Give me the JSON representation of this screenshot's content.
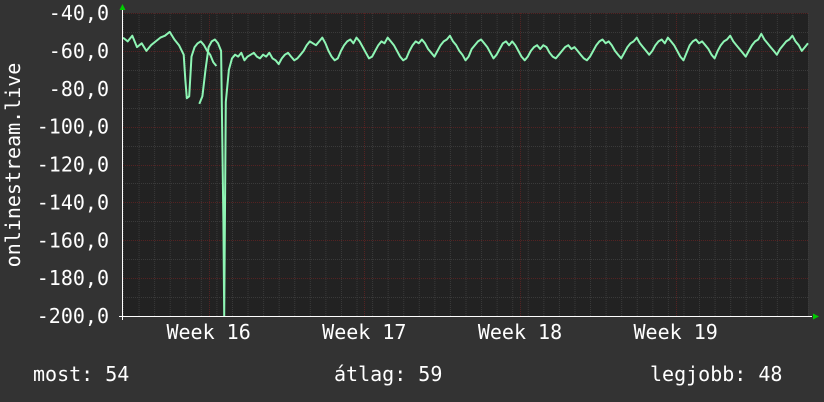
{
  "chart_data": {
    "type": "line",
    "ylabel": "onlinestream.live",
    "ylim": [
      -200,
      -40
    ],
    "yticks": [
      -40,
      -60,
      -80,
      -100,
      -120,
      -140,
      -160,
      -180,
      -200
    ],
    "ytick_labels": [
      "-40,0",
      "-60,0",
      "-80,0",
      "-100,0",
      "-120,0",
      "-140,0",
      "-160,0",
      "-180,0",
      "-200,0"
    ],
    "x_unit": "day",
    "xlim": [
      0,
      44
    ],
    "xticks": [
      {
        "label": "Week 16",
        "x": 5.5
      },
      {
        "label": "Week 17",
        "x": 15.5
      },
      {
        "label": "Week 18",
        "x": 25.5
      },
      {
        "label": "Week 19",
        "x": 35.5
      }
    ],
    "grid": true,
    "series": [
      {
        "color": "#8ef5b4",
        "segments": [
          [
            [
              0.0,
              -53
            ],
            [
              0.3,
              -55
            ],
            [
              0.6,
              -52
            ],
            [
              0.9,
              -58
            ],
            [
              1.2,
              -56
            ],
            [
              1.5,
              -60
            ],
            [
              1.8,
              -57
            ],
            [
              2.1,
              -55
            ],
            [
              2.4,
              -53
            ],
            [
              2.7,
              -52
            ],
            [
              3.0,
              -50
            ],
            [
              3.3,
              -54
            ],
            [
              3.6,
              -57
            ],
            [
              3.9,
              -62
            ],
            [
              4.0,
              -75
            ],
            [
              4.1,
              -85
            ],
            [
              4.25,
              -84
            ],
            [
              4.4,
              -63
            ],
            [
              4.6,
              -58
            ],
            [
              4.8,
              -56
            ],
            [
              5.0,
              -55
            ],
            [
              5.2,
              -57
            ],
            [
              5.4,
              -60
            ],
            [
              5.6,
              -62
            ],
            [
              5.8,
              -66
            ],
            [
              6.0,
              -68
            ]
          ],
          [
            [
              4.9,
              -88
            ],
            [
              5.1,
              -84
            ],
            [
              5.3,
              -70
            ],
            [
              5.5,
              -58
            ],
            [
              5.7,
              -55
            ],
            [
              5.9,
              -54
            ],
            [
              6.1,
              -56
            ],
            [
              6.3,
              -60
            ],
            [
              6.45,
              -150
            ],
            [
              6.5,
              -200
            ],
            [
              6.6,
              -87
            ],
            [
              6.8,
              -70
            ],
            [
              7.0,
              -64
            ],
            [
              7.2,
              -62
            ],
            [
              7.4,
              -63
            ],
            [
              7.6,
              -61
            ],
            [
              7.8,
              -65
            ],
            [
              8.0,
              -63
            ],
            [
              8.2,
              -62
            ],
            [
              8.4,
              -61
            ],
            [
              8.6,
              -63
            ],
            [
              8.8,
              -64
            ],
            [
              9.0,
              -62
            ],
            [
              9.2,
              -63
            ],
            [
              9.4,
              -61
            ],
            [
              9.6,
              -64
            ],
            [
              9.8,
              -65
            ],
            [
              10.0,
              -67
            ],
            [
              10.2,
              -64
            ],
            [
              10.4,
              -62
            ],
            [
              10.6,
              -61
            ],
            [
              10.8,
              -63
            ],
            [
              11.0,
              -65
            ],
            [
              11.2,
              -64
            ],
            [
              11.4,
              -62
            ],
            [
              11.6,
              -60
            ],
            [
              11.8,
              -57
            ],
            [
              12.0,
              -55
            ],
            [
              12.2,
              -56
            ],
            [
              12.4,
              -57
            ],
            [
              12.6,
              -55
            ],
            [
              12.8,
              -53
            ],
            [
              13.0,
              -56
            ],
            [
              13.2,
              -60
            ],
            [
              13.4,
              -63
            ],
            [
              13.6,
              -65
            ],
            [
              13.8,
              -64
            ],
            [
              14.0,
              -60
            ],
            [
              14.2,
              -57
            ],
            [
              14.4,
              -55
            ],
            [
              14.6,
              -54
            ],
            [
              14.8,
              -56
            ],
            [
              15.0,
              -53
            ],
            [
              15.2,
              -55
            ],
            [
              15.4,
              -58
            ],
            [
              15.6,
              -61
            ],
            [
              15.8,
              -64
            ],
            [
              16.0,
              -63
            ],
            [
              16.2,
              -60
            ],
            [
              16.4,
              -57
            ],
            [
              16.6,
              -55
            ],
            [
              16.8,
              -56
            ],
            [
              17.0,
              -53
            ],
            [
              17.2,
              -55
            ],
            [
              17.4,
              -57
            ],
            [
              17.6,
              -60
            ],
            [
              17.8,
              -63
            ],
            [
              18.0,
              -65
            ],
            [
              18.2,
              -64
            ],
            [
              18.4,
              -60
            ],
            [
              18.6,
              -57
            ],
            [
              18.8,
              -55
            ],
            [
              19.0,
              -56
            ],
            [
              19.2,
              -54
            ],
            [
              19.4,
              -56
            ],
            [
              19.6,
              -59
            ],
            [
              19.8,
              -61
            ],
            [
              20.0,
              -63
            ],
            [
              20.2,
              -60
            ],
            [
              20.4,
              -57
            ],
            [
              20.6,
              -55
            ],
            [
              20.8,
              -54
            ],
            [
              21.0,
              -52
            ],
            [
              21.2,
              -55
            ],
            [
              21.4,
              -57
            ],
            [
              21.6,
              -60
            ],
            [
              21.8,
              -62
            ],
            [
              22.0,
              -65
            ],
            [
              22.2,
              -63
            ],
            [
              22.4,
              -59
            ],
            [
              22.6,
              -57
            ],
            [
              22.8,
              -55
            ],
            [
              23.0,
              -54
            ],
            [
              23.2,
              -56
            ],
            [
              23.4,
              -58
            ],
            [
              23.6,
              -61
            ],
            [
              23.8,
              -64
            ],
            [
              24.0,
              -62
            ],
            [
              24.2,
              -59
            ],
            [
              24.4,
              -56
            ],
            [
              24.6,
              -55
            ],
            [
              24.8,
              -57
            ],
            [
              25.0,
              -55
            ],
            [
              25.2,
              -57
            ],
            [
              25.4,
              -60
            ],
            [
              25.6,
              -63
            ],
            [
              25.8,
              -65
            ],
            [
              26.0,
              -63
            ],
            [
              26.2,
              -60
            ],
            [
              26.4,
              -58
            ],
            [
              26.6,
              -57
            ],
            [
              26.8,
              -59
            ],
            [
              27.0,
              -57
            ],
            [
              27.2,
              -58
            ],
            [
              27.4,
              -61
            ],
            [
              27.6,
              -63
            ],
            [
              27.8,
              -64
            ],
            [
              28.0,
              -62
            ],
            [
              28.2,
              -60
            ],
            [
              28.4,
              -58
            ],
            [
              28.6,
              -57
            ],
            [
              28.8,
              -59
            ],
            [
              29.0,
              -58
            ],
            [
              29.2,
              -60
            ],
            [
              29.4,
              -62
            ],
            [
              29.6,
              -64
            ],
            [
              29.8,
              -65
            ],
            [
              30.0,
              -63
            ],
            [
              30.2,
              -60
            ],
            [
              30.4,
              -57
            ],
            [
              30.6,
              -55
            ],
            [
              30.8,
              -54
            ],
            [
              31.0,
              -56
            ],
            [
              31.2,
              -55
            ],
            [
              31.4,
              -57
            ],
            [
              31.6,
              -60
            ],
            [
              31.8,
              -62
            ],
            [
              32.0,
              -64
            ],
            [
              32.2,
              -61
            ],
            [
              32.4,
              -58
            ],
            [
              32.6,
              -56
            ],
            [
              32.8,
              -55
            ],
            [
              33.0,
              -53
            ],
            [
              33.2,
              -56
            ],
            [
              33.4,
              -58
            ],
            [
              33.6,
              -60
            ],
            [
              33.8,
              -62
            ],
            [
              34.0,
              -60
            ],
            [
              34.2,
              -57
            ],
            [
              34.4,
              -55
            ],
            [
              34.6,
              -54
            ],
            [
              34.8,
              -56
            ],
            [
              35.0,
              -53
            ],
            [
              35.2,
              -55
            ],
            [
              35.4,
              -57
            ],
            [
              35.6,
              -60
            ],
            [
              35.8,
              -63
            ],
            [
              36.0,
              -65
            ],
            [
              36.2,
              -61
            ],
            [
              36.4,
              -57
            ],
            [
              36.6,
              -55
            ],
            [
              36.8,
              -54
            ],
            [
              37.0,
              -56
            ],
            [
              37.2,
              -55
            ],
            [
              37.4,
              -57
            ],
            [
              37.6,
              -59
            ],
            [
              37.8,
              -62
            ],
            [
              38.0,
              -64
            ],
            [
              38.2,
              -60
            ],
            [
              38.4,
              -57
            ],
            [
              38.6,
              -55
            ],
            [
              38.8,
              -54
            ],
            [
              39.0,
              -52
            ],
            [
              39.2,
              -55
            ],
            [
              39.4,
              -57
            ],
            [
              39.6,
              -59
            ],
            [
              39.8,
              -61
            ],
            [
              40.0,
              -63
            ],
            [
              40.2,
              -60
            ],
            [
              40.4,
              -57
            ],
            [
              40.6,
              -55
            ],
            [
              40.8,
              -54
            ],
            [
              41.0,
              -51
            ],
            [
              41.2,
              -54
            ],
            [
              41.4,
              -56
            ],
            [
              41.6,
              -58
            ],
            [
              41.8,
              -60
            ],
            [
              42.0,
              -62
            ],
            [
              42.2,
              -59
            ],
            [
              42.4,
              -57
            ],
            [
              42.6,
              -55
            ],
            [
              42.8,
              -54
            ],
            [
              43.0,
              -52
            ],
            [
              43.2,
              -55
            ],
            [
              43.4,
              -57
            ],
            [
              43.6,
              -60
            ],
            [
              43.8,
              -58
            ],
            [
              44.0,
              -56
            ]
          ]
        ]
      }
    ],
    "legend": {
      "now_label": "most:",
      "now_value": "54",
      "avg_label": "átlag:",
      "avg_value": "59",
      "best_label": "legjobb:",
      "best_value": "48"
    }
  },
  "colors": {
    "background": "#333333",
    "plot_background": "#222222",
    "grid_minor": "#3a3a3a",
    "grid_major": "#552222",
    "axis": "#ffffff",
    "arrow": "#00cc00",
    "text": "#ffffff",
    "series": "#8ef5b4"
  }
}
